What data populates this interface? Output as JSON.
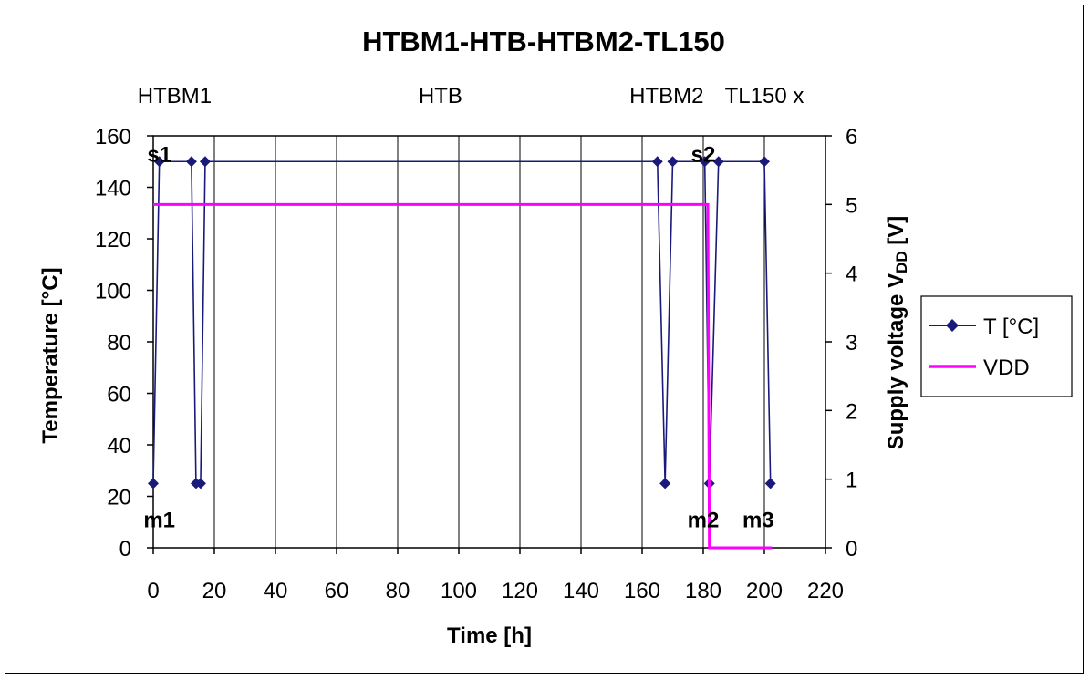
{
  "chart_data": {
    "type": "line",
    "title": "HTBM1-HTB-HTBM2-TL150",
    "xlabel": "Time [h]",
    "ylabel": "Temperature [°C]",
    "y2label_main": "Supply voltage V",
    "y2label_sub": "DD",
    "y2label_tail": " [V]",
    "xlim": [
      0,
      220
    ],
    "ylim": [
      0,
      160
    ],
    "y2lim": [
      0,
      6
    ],
    "x_ticks": [
      "0",
      "20",
      "40",
      "60",
      "80",
      "100",
      "120",
      "140",
      "160",
      "180",
      "200",
      "220"
    ],
    "y_ticks": [
      "0",
      "20",
      "40",
      "60",
      "80",
      "100",
      "120",
      "140",
      "160"
    ],
    "y2_ticks": [
      "0",
      "1",
      "2",
      "3",
      "4",
      "5",
      "6"
    ],
    "grid": "vertical",
    "legend_position": "right",
    "phases": [
      {
        "label": "HTBM1",
        "x": 7
      },
      {
        "label": "HTB",
        "x": 94
      },
      {
        "label": "HTBM2",
        "x": 168
      },
      {
        "label": "TL150 x",
        "x": 200
      }
    ],
    "annotations": [
      {
        "label": "s1",
        "x": 2,
        "y": 150
      },
      {
        "label": "m1",
        "x": 2,
        "y": 8
      },
      {
        "label": "s2",
        "x": 180,
        "y": 150
      },
      {
        "label": "m2",
        "x": 180,
        "y": 8
      },
      {
        "label": "m3",
        "x": 198,
        "y": 8
      }
    ],
    "series": [
      {
        "name": "T [°C]",
        "axis": "left",
        "color": "#1a1a7a",
        "marker": "diamond",
        "points": [
          [
            0,
            25
          ],
          [
            2,
            150
          ],
          [
            12.5,
            150
          ],
          [
            14,
            25
          ],
          [
            15.5,
            25
          ],
          [
            17,
            150
          ],
          [
            165,
            150
          ],
          [
            167.5,
            25
          ],
          [
            170,
            150
          ],
          [
            180.5,
            150
          ],
          [
            182,
            25
          ],
          [
            185,
            150
          ],
          [
            200,
            150
          ],
          [
            202,
            25
          ]
        ]
      },
      {
        "name": "VDD",
        "axis": "right",
        "color": "#ff00ff",
        "marker": "none",
        "points": [
          [
            0,
            5
          ],
          [
            181.5,
            5
          ],
          [
            182,
            0
          ],
          [
            202.5,
            0
          ]
        ]
      }
    ]
  }
}
